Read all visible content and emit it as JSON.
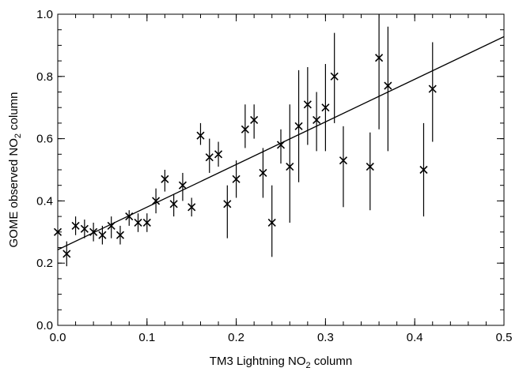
{
  "chart_data": {
    "type": "scatter",
    "title": "",
    "xlabel": {
      "pre": "TM3 Lightning NO",
      "sub": "2",
      "post": " column"
    },
    "ylabel": {
      "pre": "GOME observed NO",
      "sub": "2",
      "post": " column"
    },
    "xlim": [
      0.0,
      0.5
    ],
    "ylim": [
      0.0,
      1.0
    ],
    "xticks": [
      "0.0",
      "0.1",
      "0.2",
      "0.3",
      "0.4",
      "0.5"
    ],
    "yticks": [
      "0.0",
      "0.2",
      "0.4",
      "0.6",
      "0.8",
      "1.0"
    ],
    "grid": false,
    "marker": "x",
    "fit_line": {
      "x": [
        0.0,
        0.5
      ],
      "y": [
        0.243,
        0.928
      ]
    },
    "points": [
      {
        "x": 0.0,
        "y": 0.3
      },
      {
        "x": 0.01,
        "y": 0.23,
        "err": [
          0.19,
          0.27
        ]
      },
      {
        "x": 0.02,
        "y": 0.32,
        "err": [
          0.29,
          0.35
        ]
      },
      {
        "x": 0.03,
        "y": 0.31,
        "err": [
          0.28,
          0.34
        ]
      },
      {
        "x": 0.04,
        "y": 0.3,
        "err": [
          0.27,
          0.33
        ]
      },
      {
        "x": 0.05,
        "y": 0.29,
        "err": [
          0.26,
          0.32
        ]
      },
      {
        "x": 0.06,
        "y": 0.32,
        "err": [
          0.28,
          0.35
        ]
      },
      {
        "x": 0.07,
        "y": 0.29,
        "err": [
          0.26,
          0.32
        ]
      },
      {
        "x": 0.08,
        "y": 0.35,
        "err": [
          0.32,
          0.37
        ]
      },
      {
        "x": 0.09,
        "y": 0.33,
        "err": [
          0.3,
          0.36
        ]
      },
      {
        "x": 0.1,
        "y": 0.33,
        "err": [
          0.3,
          0.36
        ]
      },
      {
        "x": 0.11,
        "y": 0.4,
        "err": [
          0.36,
          0.44
        ]
      },
      {
        "x": 0.12,
        "y": 0.47,
        "err": [
          0.43,
          0.5
        ]
      },
      {
        "x": 0.13,
        "y": 0.39,
        "err": [
          0.35,
          0.42
        ]
      },
      {
        "x": 0.14,
        "y": 0.45,
        "err": [
          0.4,
          0.49
        ]
      },
      {
        "x": 0.15,
        "y": 0.38,
        "err": [
          0.35,
          0.41
        ]
      },
      {
        "x": 0.16,
        "y": 0.61,
        "err": [
          0.58,
          0.65
        ]
      },
      {
        "x": 0.17,
        "y": 0.54,
        "err": [
          0.49,
          0.6
        ]
      },
      {
        "x": 0.18,
        "y": 0.55,
        "err": [
          0.51,
          0.59
        ]
      },
      {
        "x": 0.19,
        "y": 0.39,
        "err": [
          0.28,
          0.45
        ]
      },
      {
        "x": 0.2,
        "y": 0.47,
        "err": [
          0.41,
          0.53
        ]
      },
      {
        "x": 0.21,
        "y": 0.63,
        "err": [
          0.57,
          0.71
        ]
      },
      {
        "x": 0.22,
        "y": 0.66,
        "err": [
          0.6,
          0.71
        ]
      },
      {
        "x": 0.23,
        "y": 0.49,
        "err": [
          0.41,
          0.57
        ]
      },
      {
        "x": 0.24,
        "y": 0.33,
        "err": [
          0.22,
          0.45
        ]
      },
      {
        "x": 0.25,
        "y": 0.58,
        "err": [
          0.52,
          0.63
        ]
      },
      {
        "x": 0.26,
        "y": 0.51,
        "err": [
          0.33,
          0.71
        ]
      },
      {
        "x": 0.27,
        "y": 0.64,
        "err": [
          0.46,
          0.82
        ]
      },
      {
        "x": 0.28,
        "y": 0.71,
        "err": [
          0.58,
          0.83
        ]
      },
      {
        "x": 0.29,
        "y": 0.66,
        "err": [
          0.56,
          0.75
        ]
      },
      {
        "x": 0.3,
        "y": 0.7,
        "err": [
          0.56,
          0.84
        ]
      },
      {
        "x": 0.31,
        "y": 0.8,
        "err": [
          0.65,
          0.94
        ]
      },
      {
        "x": 0.32,
        "y": 0.53,
        "err": [
          0.38,
          0.64
        ]
      },
      {
        "x": 0.35,
        "y": 0.51,
        "err": [
          0.37,
          0.62
        ]
      },
      {
        "x": 0.36,
        "y": 0.86,
        "err": [
          0.63,
          1.0
        ]
      },
      {
        "x": 0.37,
        "y": 0.77,
        "err": [
          0.56,
          0.96
        ]
      },
      {
        "x": 0.41,
        "y": 0.5,
        "err": [
          0.35,
          0.65
        ]
      },
      {
        "x": 0.42,
        "y": 0.76,
        "err": [
          0.59,
          0.91
        ]
      }
    ]
  }
}
